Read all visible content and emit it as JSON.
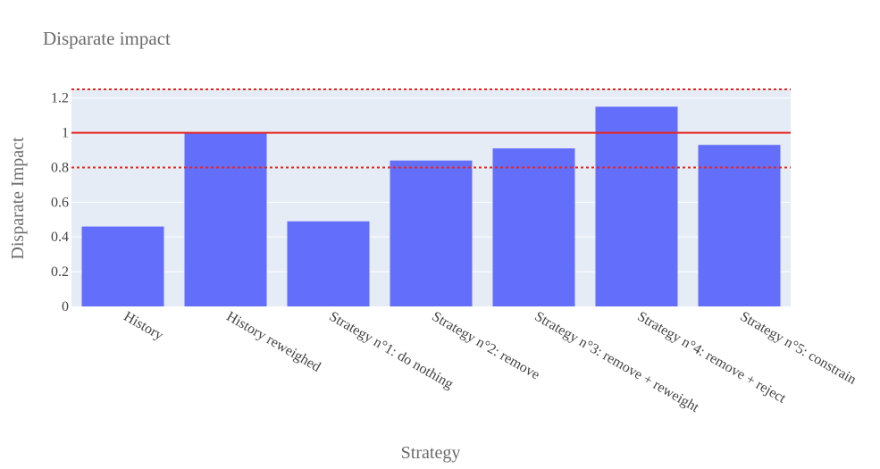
{
  "chart_data": {
    "type": "bar",
    "title": "Disparate impact",
    "xlabel": "Strategy",
    "ylabel": "Disparate Impact",
    "categories": [
      "History",
      "History reweighed",
      "Strategy n°1: do nothing",
      "Strategy n°2: remove",
      "Strategy n°3: remove + reweight",
      "Strategy n°4: remove + reject",
      "Strategy n°5: constrain"
    ],
    "values": [
      0.46,
      1.0,
      0.49,
      0.84,
      0.91,
      1.15,
      0.93
    ],
    "ylim": [
      0,
      1.25
    ],
    "yticks": [
      0,
      0.2,
      0.4,
      0.6,
      0.8,
      1,
      1.2
    ],
    "ytick_labels": [
      "0",
      "0.2",
      "0.4",
      "0.6",
      "0.8",
      "1",
      "1.2"
    ],
    "reference_lines": [
      {
        "y": 1.0,
        "style": "solid",
        "color": "#e8251f"
      },
      {
        "y": 0.8,
        "style": "dotted",
        "color": "#e8251f"
      },
      {
        "y": 1.25,
        "style": "dotted",
        "color": "#e8251f"
      }
    ],
    "bar_color": "#636efa",
    "plot_bg": "#e5ecf6",
    "grid": true
  }
}
